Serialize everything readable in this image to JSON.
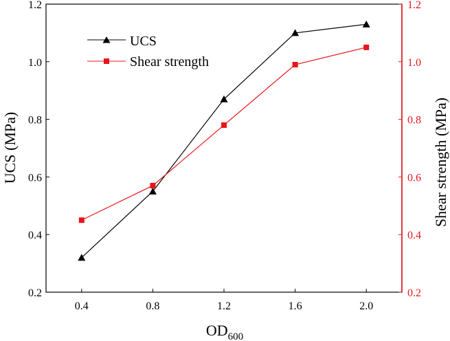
{
  "chart_data": {
    "type": "line",
    "x": [
      0.4,
      0.8,
      1.2,
      1.6,
      2.0
    ],
    "x_ticks": [
      "0.4",
      "0.8",
      "1.2",
      "1.6",
      "2.0"
    ],
    "xlim": [
      0.2,
      2.2
    ],
    "xlabel_main": "OD",
    "xlabel_sub": "600",
    "y_left": {
      "label": "UCS (MPa)",
      "ylim": [
        0.2,
        1.2
      ],
      "ticks": [
        "0.2",
        "0.4",
        "0.6",
        "0.8",
        "1.0",
        "1.2"
      ],
      "color": "#000000"
    },
    "y_right": {
      "label": "Shear strength (MPa)",
      "ylim": [
        0.2,
        1.2
      ],
      "ticks": [
        "0.2",
        "0.4",
        "0.6",
        "0.8",
        "1.0",
        "1.2"
      ],
      "color": "#e8141b"
    },
    "series": [
      {
        "name": "UCS",
        "axis": "left",
        "marker": "triangle",
        "color": "#000000",
        "values": [
          0.32,
          0.55,
          0.87,
          1.1,
          1.13
        ]
      },
      {
        "name": "Shear strength",
        "axis": "right",
        "marker": "square",
        "color": "#e8141b",
        "values": [
          0.45,
          0.57,
          0.78,
          0.99,
          1.05
        ]
      }
    ],
    "legend_position": "top-left"
  }
}
